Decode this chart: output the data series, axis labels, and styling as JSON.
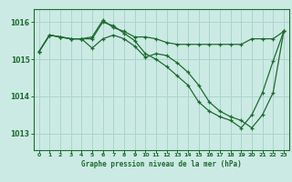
{
  "bg_color": "#cceae4",
  "grid_color": "#aad4cc",
  "line_color": "#1e6b30",
  "title": "Graphe pression niveau de la mer (hPa)",
  "xlim": [
    -0.5,
    23.5
  ],
  "ylim": [
    1012.55,
    1016.35
  ],
  "xticks": [
    0,
    1,
    2,
    3,
    4,
    5,
    6,
    7,
    8,
    9,
    10,
    11,
    12,
    13,
    14,
    15,
    16,
    17,
    18,
    19,
    20,
    21,
    22,
    23
  ],
  "yticks": [
    1013,
    1014,
    1015,
    1016
  ],
  "series": [
    [
      1015.2,
      1015.65,
      1015.6,
      1015.55,
      1015.55,
      1015.6,
      1016.05,
      1015.85,
      1015.75,
      1015.6,
      1015.6,
      1015.55,
      1015.45,
      1015.4,
      1015.4,
      1015.4,
      1015.4,
      1015.4,
      1015.4,
      1015.4,
      1015.55,
      1015.55,
      1015.55,
      1015.75
    ],
    [
      1015.2,
      1015.65,
      1015.6,
      1015.55,
      1015.55,
      1015.55,
      1016.0,
      1015.9,
      1015.7,
      1015.5,
      1015.15,
      1015.0,
      1014.8,
      1014.55,
      1014.3,
      1013.85,
      1013.6,
      1013.45,
      1013.35,
      1013.15,
      1013.5,
      1014.1,
      1014.95,
      1015.75
    ],
    [
      1015.2,
      1015.65,
      1015.6,
      1015.55,
      1015.55,
      1015.3,
      1015.55,
      1015.65,
      1015.55,
      1015.35,
      1015.05,
      1015.15,
      1015.1,
      1014.9,
      1014.65,
      1014.3,
      1013.85,
      1013.6,
      1013.45,
      1013.35,
      1013.15,
      1013.5,
      1014.1,
      1015.75
    ]
  ]
}
